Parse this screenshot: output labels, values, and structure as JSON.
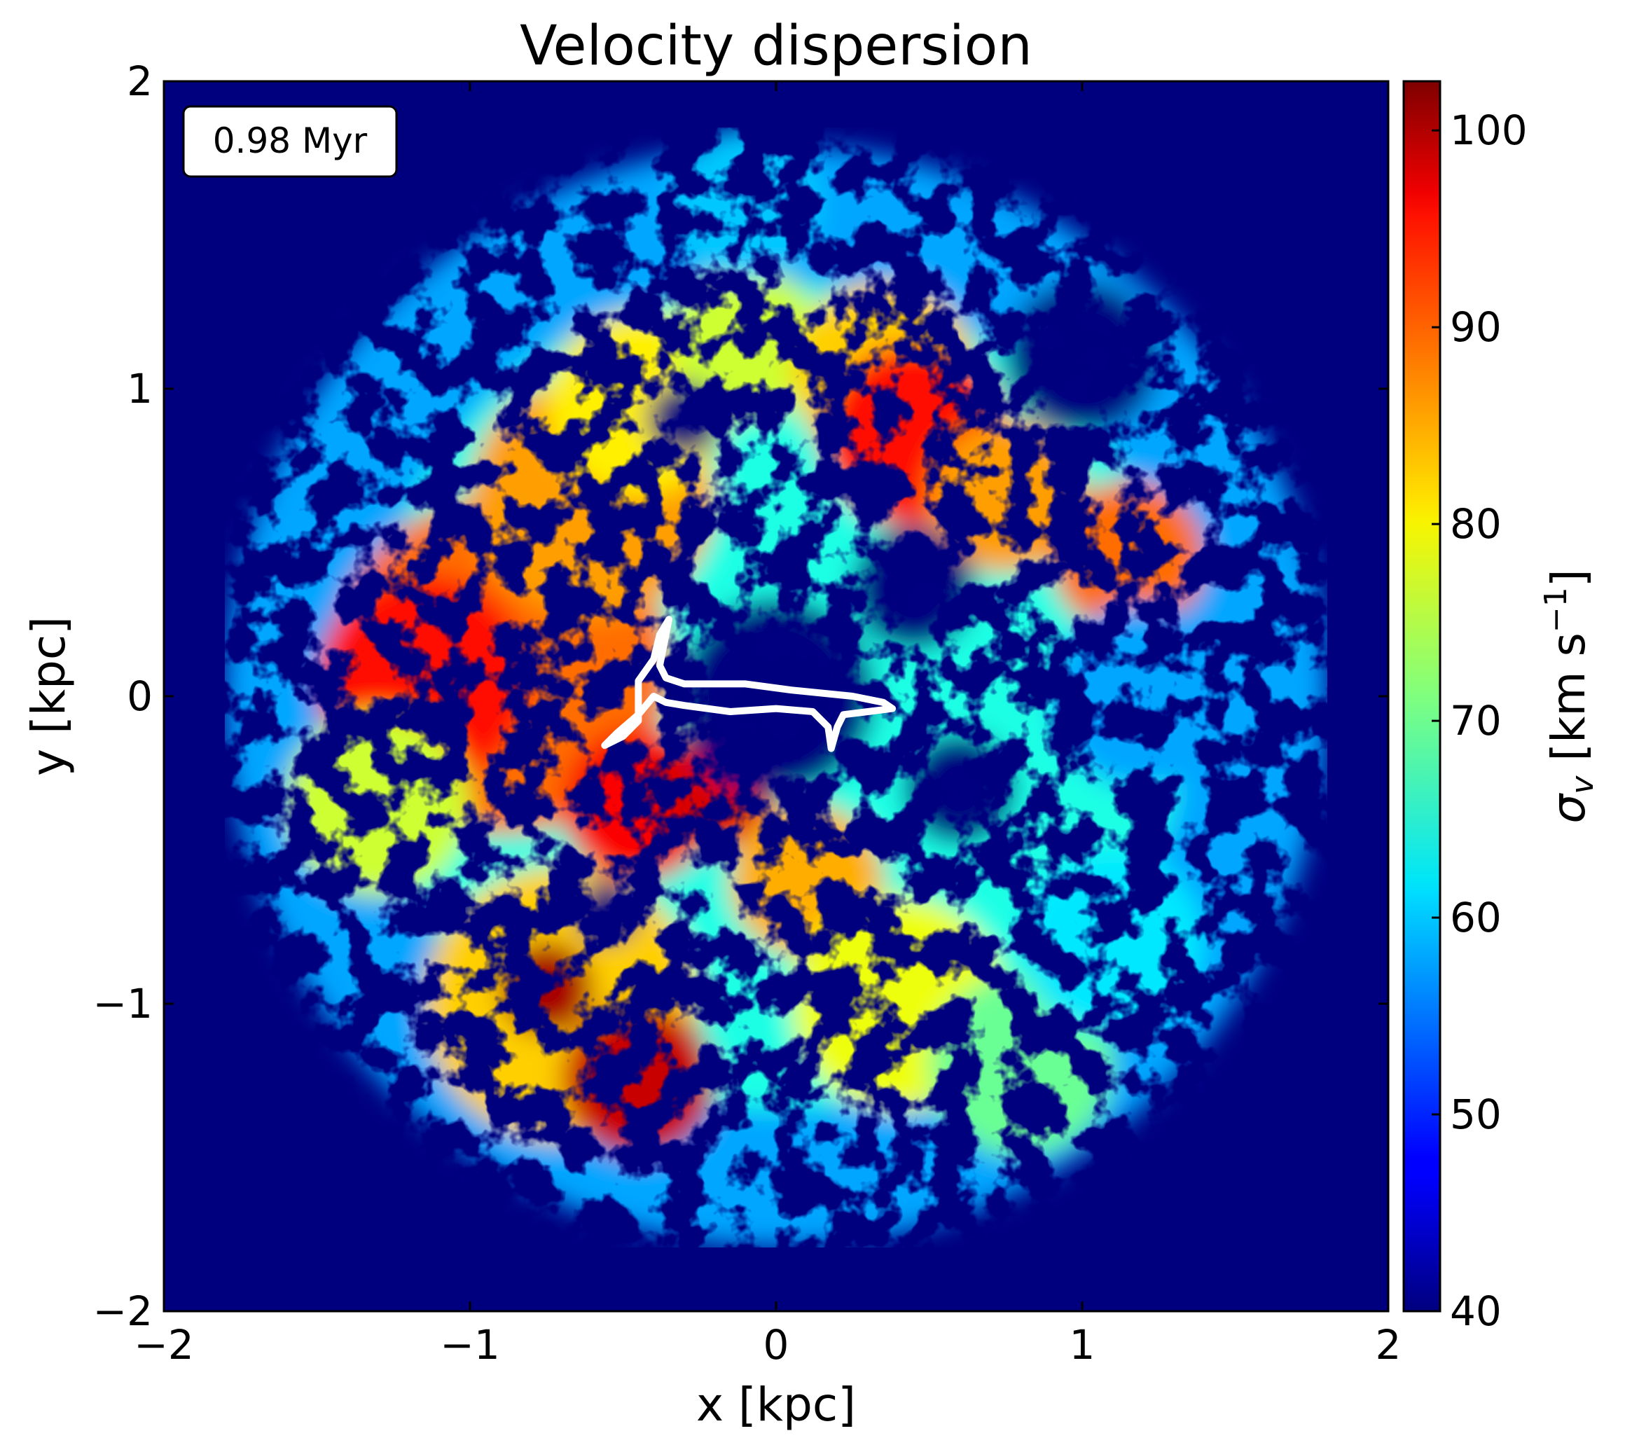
{
  "chart_data": {
    "type": "heatmap",
    "title": "Velocity dispersion",
    "xlabel": "x [kpc]",
    "ylabel": "y [kpc]",
    "xlim": [
      -2,
      2
    ],
    "ylim": [
      -2,
      2
    ],
    "x_ticks": [
      -2,
      -1,
      0,
      1,
      2
    ],
    "y_ticks": [
      -2,
      -1,
      0,
      1,
      2
    ],
    "x_tick_labels": [
      "−2",
      "−1",
      "0",
      "1",
      "2"
    ],
    "y_tick_labels": [
      "−2",
      "−1",
      "0",
      "1",
      "2"
    ],
    "background_value": 40,
    "colormap": "jet",
    "annotation": "0.98 Myr",
    "colorbar": {
      "label": "σv [km s−1]",
      "label_main": "σ",
      "label_sub": "v",
      "label_unit": " [km s",
      "label_sup": "−1",
      "label_close": "]",
      "range": [
        40,
        102.5
      ],
      "ticks": [
        40,
        50,
        60,
        70,
        80,
        90,
        100
      ],
      "tick_labels": [
        "40",
        "50",
        "60",
        "70",
        "80",
        "90",
        "100"
      ]
    },
    "contour": {
      "color": "#ffffff",
      "points": [
        [
          -0.35,
          0.25
        ],
        [
          -0.38,
          0.1
        ],
        [
          -0.36,
          0.06
        ],
        [
          -0.3,
          0.04
        ],
        [
          -0.1,
          0.04
        ],
        [
          0.05,
          0.02
        ],
        [
          0.25,
          0.0
        ],
        [
          0.35,
          -0.02
        ],
        [
          0.38,
          -0.04
        ],
        [
          0.3,
          -0.05
        ],
        [
          0.22,
          -0.06
        ],
        [
          0.2,
          -0.1
        ],
        [
          0.18,
          -0.17
        ],
        [
          0.17,
          -0.1
        ],
        [
          0.12,
          -0.05
        ],
        [
          0.0,
          -0.04
        ],
        [
          -0.15,
          -0.05
        ],
        [
          -0.3,
          -0.03
        ],
        [
          -0.36,
          -0.02
        ],
        [
          -0.4,
          0.0
        ],
        [
          -0.45,
          -0.06
        ],
        [
          -0.52,
          -0.12
        ],
        [
          -0.56,
          -0.16
        ],
        [
          -0.5,
          -0.13
        ],
        [
          -0.45,
          -0.08
        ],
        [
          -0.45,
          0.05
        ],
        [
          -0.4,
          0.12
        ],
        [
          -0.38,
          0.2
        ],
        [
          -0.35,
          0.25
        ]
      ]
    },
    "regions": [
      {
        "x": 0.0,
        "y": 0.0,
        "r": 1.8,
        "value": 58
      },
      {
        "x": 0.0,
        "y": 0.0,
        "r": 1.35,
        "value": 65
      },
      {
        "x": -0.9,
        "y": 0.1,
        "r": 0.55,
        "value": 88
      },
      {
        "x": -1.15,
        "y": 0.05,
        "r": 0.35,
        "value": 94
      },
      {
        "x": -0.6,
        "y": 0.65,
        "r": 0.4,
        "value": 85
      },
      {
        "x": -0.45,
        "y": 0.95,
        "r": 0.3,
        "value": 80
      },
      {
        "x": -0.1,
        "y": 1.15,
        "r": 0.25,
        "value": 76
      },
      {
        "x": 0.35,
        "y": 1.05,
        "r": 0.3,
        "value": 82
      },
      {
        "x": 0.45,
        "y": 0.85,
        "r": 0.3,
        "value": 94
      },
      {
        "x": 0.75,
        "y": 0.65,
        "r": 0.25,
        "value": 85
      },
      {
        "x": 1.15,
        "y": 0.45,
        "r": 0.25,
        "value": 88
      },
      {
        "x": -1.3,
        "y": -0.35,
        "r": 0.3,
        "value": 76
      },
      {
        "x": -0.7,
        "y": -1.0,
        "r": 0.45,
        "value": 82
      },
      {
        "x": -0.45,
        "y": -1.25,
        "r": 0.25,
        "value": 98
      },
      {
        "x": -0.75,
        "y": -0.95,
        "r": 0.15,
        "value": 100
      },
      {
        "x": -0.45,
        "y": -0.35,
        "r": 0.25,
        "value": 95
      },
      {
        "x": -0.2,
        "y": -0.3,
        "r": 0.2,
        "value": 97
      },
      {
        "x": 0.1,
        "y": -0.6,
        "r": 0.25,
        "value": 84
      },
      {
        "x": 0.4,
        "y": -1.0,
        "r": 0.35,
        "value": 78
      },
      {
        "x": 0.8,
        "y": -1.2,
        "r": 0.3,
        "value": 70
      },
      {
        "x": 1.1,
        "y": -0.8,
        "r": 0.3,
        "value": 62
      },
      {
        "x": 1.2,
        "y": 0.0,
        "r": 0.3,
        "value": 58
      },
      {
        "x": -0.1,
        "y": 1.6,
        "r": 0.25,
        "value": 60
      },
      {
        "x": 0.0,
        "y": 0.0,
        "r": 0.32,
        "value": 40
      },
      {
        "x": 0.45,
        "y": 0.35,
        "r": 0.2,
        "value": 40
      },
      {
        "x": -0.3,
        "y": 0.9,
        "r": 0.12,
        "value": 40
      },
      {
        "x": 0.6,
        "y": -0.3,
        "r": 0.18,
        "value": 40
      },
      {
        "x": -0.55,
        "y": -0.7,
        "r": 0.1,
        "value": 40
      },
      {
        "x": 1.0,
        "y": 1.1,
        "r": 0.25,
        "value": 40
      }
    ]
  }
}
